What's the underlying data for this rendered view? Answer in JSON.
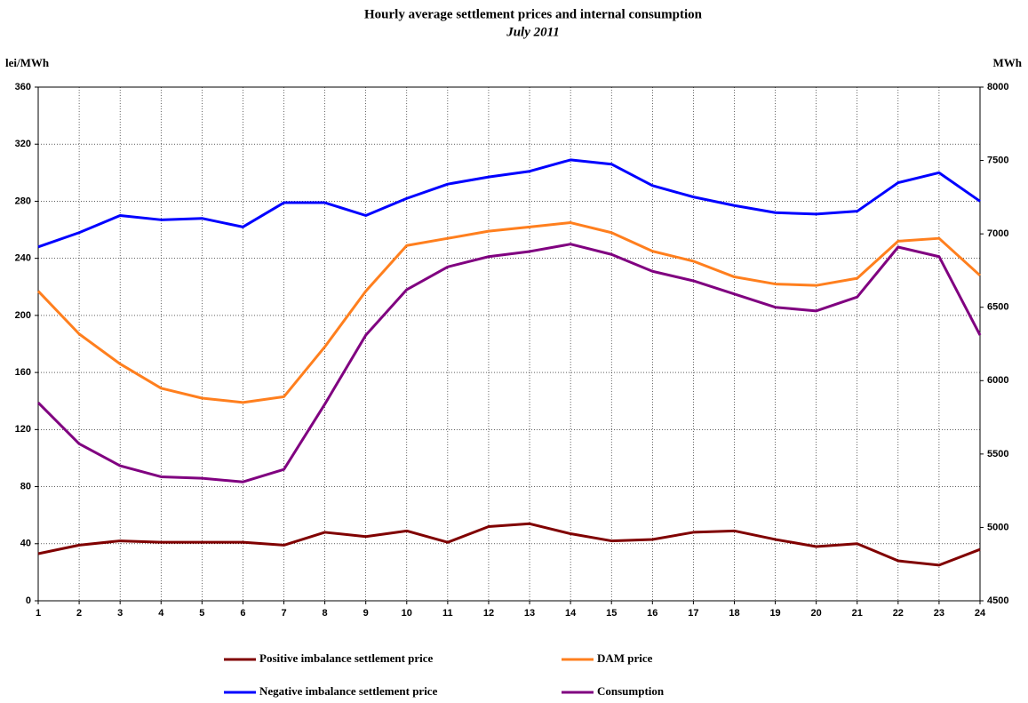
{
  "chart_data": {
    "type": "line",
    "title": "Hourly average settlement prices and internal consumption",
    "subtitle": "July 2011",
    "y_label": "lei/MWh",
    "y2_label": "MWh",
    "categories": [
      "1",
      "2",
      "3",
      "4",
      "5",
      "6",
      "7",
      "8",
      "9",
      "10",
      "11",
      "12",
      "13",
      "14",
      "15",
      "16",
      "17",
      "18",
      "19",
      "20",
      "21",
      "22",
      "23",
      "24"
    ],
    "series": [
      {
        "name": "Positive imbalance settlement price",
        "color": "#800000",
        "values": [
          33,
          39,
          42,
          41,
          41,
          41,
          39,
          48,
          45,
          49,
          41,
          52,
          54,
          47,
          42,
          43,
          48,
          49,
          43,
          38,
          40,
          28,
          25,
          36
        ]
      },
      {
        "name": "DAM price",
        "color": "#ff7f1e",
        "values": [
          217,
          187,
          166,
          149,
          142,
          139,
          143,
          178,
          217,
          249,
          254,
          259,
          262,
          265,
          258,
          245,
          238,
          227,
          222,
          221,
          226,
          252,
          254,
          228
        ]
      },
      {
        "name": "Negative imbalance settlement price",
        "color": "#0000ff",
        "values": [
          248,
          258,
          270,
          267,
          268,
          262,
          279,
          279,
          270,
          282,
          292,
          297,
          301,
          309,
          306,
          291,
          283,
          277,
          272,
          271,
          273,
          293,
          300,
          280
        ]
      },
      {
        "name": "Consumption",
        "color": "#800080",
        "axis": "y2",
        "values": [
          5850,
          5570,
          5420,
          5345,
          5335,
          5310,
          5395,
          5840,
          6310,
          6620,
          6775,
          6845,
          6880,
          6930,
          6860,
          6745,
          6680,
          6590,
          6500,
          6475,
          6570,
          6910,
          6845,
          6310
        ]
      }
    ],
    "ylim": [
      0,
      360
    ],
    "yticks": [
      0,
      40,
      80,
      120,
      160,
      200,
      240,
      280,
      320,
      360
    ],
    "y2lim": [
      4500,
      8000
    ],
    "y2ticks": [
      4500,
      5000,
      5500,
      6000,
      6500,
      7000,
      7500,
      8000
    ],
    "grid": true
  }
}
